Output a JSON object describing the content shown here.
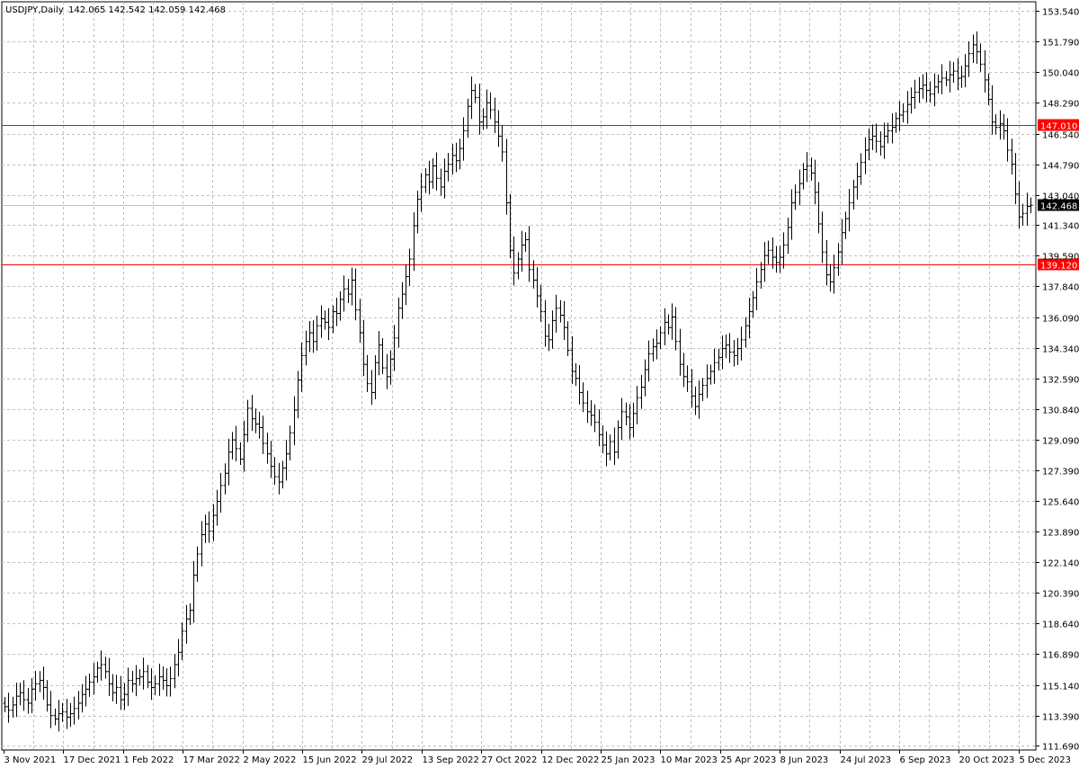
{
  "chart_title": "USDJPY,Daily",
  "ohlc_readout": "142.065 142.542 142.059 142.468",
  "chart_data": {
    "type": "line",
    "subtype": "ohlc-bars",
    "symbol": "USDJPY",
    "timeframe": "Daily",
    "title": "USDJPY,Daily",
    "ylim": [
      111.69,
      153.54
    ],
    "grid": true,
    "y_tick_labels": [
      "153.540",
      "151.790",
      "150.040",
      "148.290",
      "146.540",
      "144.790",
      "143.040",
      "141.340",
      "139.590",
      "137.840",
      "136.090",
      "134.340",
      "132.590",
      "130.840",
      "129.090",
      "127.390",
      "125.640",
      "123.890",
      "122.140",
      "120.390",
      "118.640",
      "116.890",
      "115.140",
      "113.390",
      "111.690"
    ],
    "x_tick_labels": [
      "3 Nov 2021",
      "17 Dec 2021",
      "1 Feb 2022",
      "17 Mar 2022",
      "2 May 2022",
      "15 Jun 2022",
      "29 Jul 2022",
      "13 Sep 2022",
      "27 Oct 2022",
      "12 Dec 2022",
      "25 Jan 2023",
      "10 Mar 2023",
      "25 Apr 2023",
      "8 Jun 2023",
      "24 Jul 2023",
      "6 Sep 2023",
      "20 Oct 2023",
      "5 Dec 2023"
    ],
    "horizontal_levels": [
      {
        "value": 147.01,
        "label": "147.010",
        "color": "#ff0000"
      },
      {
        "value": 139.12,
        "label": "139.120",
        "color": "#ff0000"
      }
    ],
    "current_price": {
      "value": 142.468,
      "label": "142.468"
    },
    "last_bar": {
      "open": 142.065,
      "high": 142.542,
      "low": 142.059,
      "close": 142.468
    },
    "series": [
      {
        "values": [
          113.9,
          113.7,
          114.0,
          114.5,
          114.7,
          114.3,
          114.1,
          114.9,
          115.2,
          115.4,
          115.0,
          114.0,
          113.4,
          113.2,
          113.5,
          113.6,
          113.3,
          113.5,
          113.8,
          114.1,
          114.6,
          114.9,
          115.3,
          115.6,
          116.1,
          116.3,
          115.9,
          115.2,
          114.7,
          115.0,
          114.3,
          114.6,
          115.4,
          115.2,
          115.5,
          115.6,
          115.9,
          115.3,
          115.0,
          115.2,
          115.6,
          115.4,
          115.1,
          115.5,
          116.3,
          117.0,
          118.2,
          118.9,
          119.4,
          121.4,
          122.6,
          123.7,
          124.3,
          123.9,
          124.8,
          125.6,
          126.5,
          127.2,
          128.4,
          129.1,
          128.6,
          128.0,
          129.4,
          130.9,
          130.3,
          130.0,
          129.8,
          128.9,
          128.3,
          127.6,
          127.0,
          126.7,
          127.5,
          128.3,
          129.5,
          130.8,
          132.5,
          133.9,
          134.7,
          135.2,
          134.7,
          135.6,
          136.0,
          135.8,
          135.5,
          136.4,
          136.3,
          137.1,
          137.7,
          137.4,
          138.2,
          136.5,
          135.2,
          133.4,
          132.3,
          131.8,
          133.5,
          134.5,
          133.2,
          132.7,
          133.7,
          134.9,
          136.6,
          137.4,
          138.4,
          139.4,
          141.3,
          142.8,
          143.5,
          144.2,
          143.8,
          144.7,
          144.0,
          143.5,
          144.4,
          144.8,
          145.3,
          145.0,
          145.7,
          146.7,
          148.1,
          149.0,
          148.6,
          147.2,
          147.5,
          148.3,
          147.9,
          147.2,
          146.4,
          145.5,
          142.6,
          139.9,
          138.6,
          139.4,
          140.2,
          140.5,
          138.8,
          138.2,
          137.3,
          136.4,
          135.0,
          134.8,
          135.9,
          136.6,
          136.2,
          135.5,
          134.2,
          133.0,
          132.6,
          131.8,
          131.2,
          130.7,
          130.5,
          130.1,
          129.4,
          128.8,
          128.3,
          129.0,
          128.4,
          129.8,
          130.7,
          130.4,
          129.8,
          130.6,
          131.5,
          132.1,
          133.1,
          134.0,
          134.4,
          134.6,
          135.2,
          135.8,
          135.5,
          136.1,
          134.7,
          133.4,
          132.7,
          132.4,
          131.6,
          131.0,
          131.7,
          132.2,
          132.6,
          133.0,
          133.5,
          133.8,
          134.3,
          134.5,
          134.1,
          133.9,
          134.3,
          134.8,
          135.6,
          136.4,
          137.2,
          138.1,
          138.8,
          139.6,
          139.9,
          139.5,
          139.2,
          139.5,
          140.2,
          141.2,
          142.6,
          143.2,
          143.7,
          144.5,
          144.7,
          144.3,
          143.2,
          141.4,
          139.8,
          138.5,
          138.1,
          138.9,
          139.8,
          140.9,
          141.7,
          142.6,
          143.5,
          144.1,
          144.9,
          145.6,
          146.2,
          146.4,
          146.1,
          145.8,
          146.4,
          146.7,
          146.9,
          147.4,
          147.6,
          147.8,
          148.2,
          148.6,
          148.9,
          149.1,
          149.3,
          149.0,
          148.8,
          149.2,
          149.5,
          149.7,
          149.6,
          149.9,
          150.1,
          149.7,
          149.8,
          150.4,
          151.1,
          151.6,
          151.2,
          150.5,
          149.6,
          148.5,
          147.2,
          146.9,
          147.1,
          146.7,
          145.6,
          144.8,
          143.1,
          141.8,
          142.0,
          142.4,
          142.468
        ]
      }
    ]
  }
}
